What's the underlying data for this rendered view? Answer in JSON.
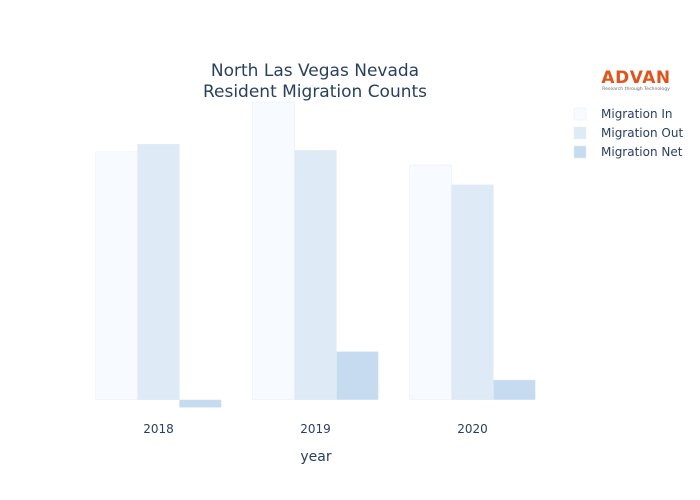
{
  "chart_data": {
    "type": "bar",
    "title_lines": [
      "North Las Vegas Nevada",
      "Resident Migration Counts"
    ],
    "xlabel": "year",
    "ylabel": "",
    "categories": [
      "2018",
      "2019",
      "2020"
    ],
    "series": [
      {
        "name": "Migration In",
        "values": [
          4880,
          5860,
          4620
        ],
        "color": "#f7fbff"
      },
      {
        "name": "Migration Out",
        "values": [
          5030,
          4910,
          4230
        ],
        "color": "#deebf7"
      },
      {
        "name": "Migration Net",
        "values": [
          -150,
          950,
          390
        ],
        "color": "#c6dbef"
      }
    ],
    "ylim": [
      -200,
      5900
    ],
    "grid": false,
    "legend_position": "top-right"
  },
  "logo": {
    "name": "ADVAN",
    "tagline": "Research through Technology"
  }
}
